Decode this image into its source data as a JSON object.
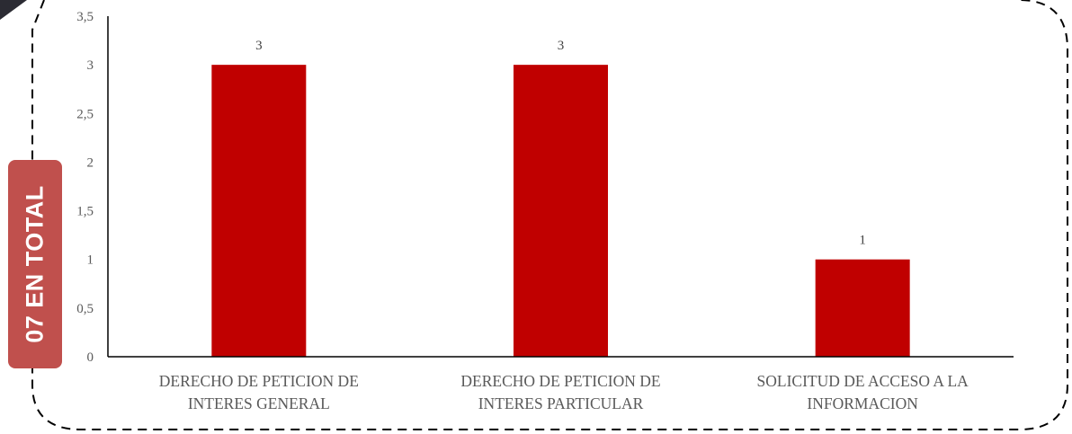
{
  "badge": {
    "text": "07 EN TOTAL",
    "color": "#c0504d"
  },
  "colors": {
    "bar": "#c00000",
    "axis": "#000000",
    "frame_border": "#000000",
    "corner_shape": "#2b2b33"
  },
  "chart_data": {
    "type": "bar",
    "categories": [
      [
        "DERECHO DE PETICION DE",
        "INTERES GENERAL"
      ],
      [
        "DERECHO DE PETICION DE",
        "INTERES PARTICULAR"
      ],
      [
        "SOLICITUD DE ACCESO A LA",
        "INFORMACION"
      ]
    ],
    "values": [
      3,
      3,
      1
    ],
    "data_labels": [
      "3",
      "3",
      "1"
    ],
    "ylim": [
      0,
      3.5
    ],
    "yticks": [
      0,
      0.5,
      1,
      1.5,
      2,
      2.5,
      3,
      3.5
    ],
    "ytick_labels": [
      "0",
      "0,5",
      "1",
      "1,5",
      "2",
      "2,5",
      "3",
      "3,5"
    ],
    "grid": false,
    "legend": "none"
  }
}
